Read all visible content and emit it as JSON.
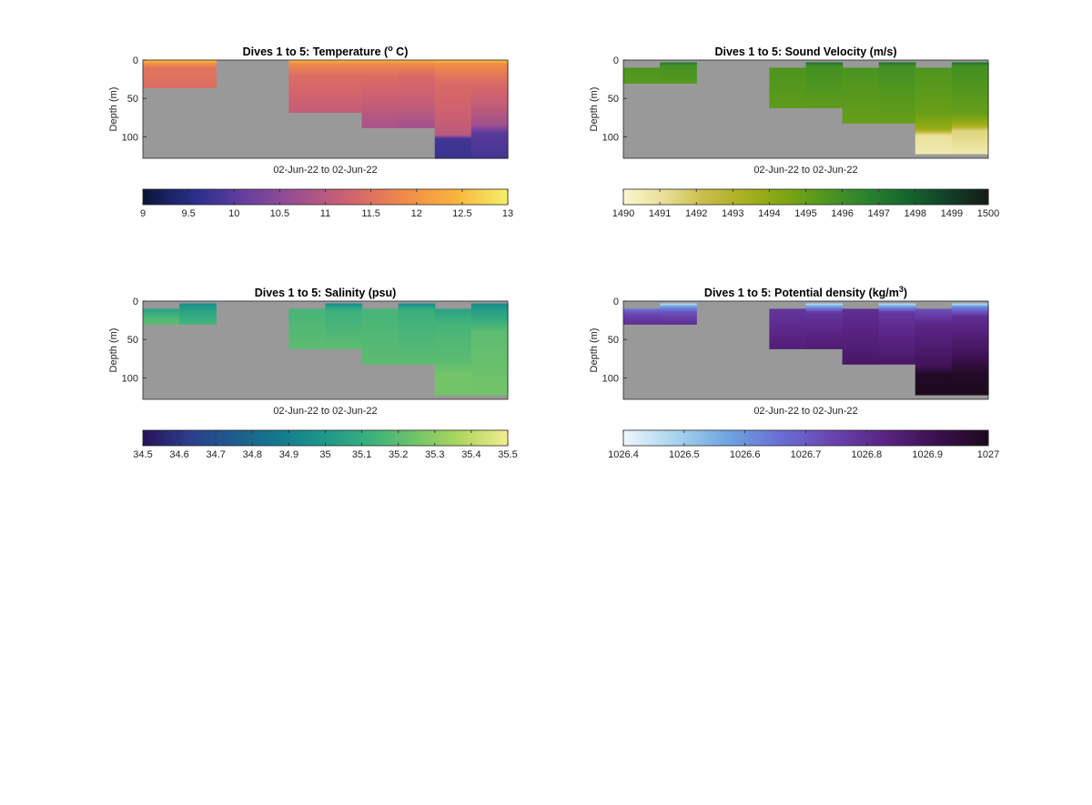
{
  "figure": {
    "background": "#ffffff",
    "no_data_color": "#999999"
  },
  "chart_data": [
    {
      "type": "heatmap",
      "id": "temperature",
      "title": "Dives 1 to 5: Temperature (",
      "title_sup": "o",
      "title_suffix": " C)",
      "ylabel": "Depth (m)",
      "xlabel": "02-Jun-22 to 02-Jun-22",
      "ylim": [
        0,
        128
      ],
      "yticks": [
        0,
        50,
        100
      ],
      "clim": [
        9,
        13
      ],
      "cticks": [
        9,
        9.5,
        10,
        10.5,
        11,
        11.5,
        12,
        12.5,
        13
      ],
      "colormap": [
        "#0a1638",
        "#2a2f8c",
        "#6a3fa0",
        "#a0508f",
        "#d2636d",
        "#f08a48",
        "#f9b43c",
        "#f5f06a"
      ],
      "columns": [
        {
          "depth": [
            0,
            36
          ],
          "top_gap": 0,
          "profile": [
            [
              0,
              12.6
            ],
            [
              4,
              12.0
            ],
            [
              10,
              11.55
            ],
            [
              36,
              11.45
            ]
          ]
        },
        {
          "depth": [
            0,
            36
          ],
          "top_gap": 0,
          "profile": [
            [
              0,
              12.6
            ],
            [
              4,
              12.0
            ],
            [
              10,
              11.55
            ],
            [
              36,
              11.45
            ]
          ]
        },
        {
          "depth": [
            0,
            0
          ],
          "top_gap": 0,
          "profile": []
        },
        {
          "depth": [
            0,
            0
          ],
          "top_gap": 0,
          "profile": []
        },
        {
          "depth": [
            0,
            68
          ],
          "top_gap": 0,
          "profile": [
            [
              0,
              12.6
            ],
            [
              4,
              11.9
            ],
            [
              20,
              11.45
            ],
            [
              50,
              11.25
            ],
            [
              68,
              11.1
            ]
          ]
        },
        {
          "depth": [
            0,
            68
          ],
          "top_gap": 0,
          "profile": [
            [
              0,
              12.6
            ],
            [
              4,
              11.9
            ],
            [
              20,
              11.45
            ],
            [
              50,
              11.25
            ],
            [
              68,
              11.1
            ]
          ]
        },
        {
          "depth": [
            0,
            88
          ],
          "top_gap": 0,
          "profile": [
            [
              0,
              12.6
            ],
            [
              4,
              11.9
            ],
            [
              20,
              11.45
            ],
            [
              60,
              11.1
            ],
            [
              88,
              10.8
            ]
          ]
        },
        {
          "depth": [
            0,
            88
          ],
          "top_gap": 0,
          "profile": [
            [
              0,
              12.6
            ],
            [
              4,
              11.9
            ],
            [
              20,
              11.4
            ],
            [
              60,
              11.1
            ],
            [
              88,
              10.75
            ]
          ]
        },
        {
          "depth": [
            0,
            128
          ],
          "top_gap": 0,
          "profile": [
            [
              0,
              12.6
            ],
            [
              5,
              11.9
            ],
            [
              30,
              11.4
            ],
            [
              75,
              11.2
            ],
            [
              98,
              11.0
            ],
            [
              102,
              9.8
            ],
            [
              128,
              9.7
            ]
          ]
        },
        {
          "depth": [
            0,
            128
          ],
          "top_gap": 0,
          "profile": [
            [
              0,
              12.6
            ],
            [
              5,
              11.9
            ],
            [
              30,
              11.4
            ],
            [
              60,
              11.1
            ],
            [
              85,
              10.7
            ],
            [
              95,
              10.0
            ],
            [
              128,
              9.8
            ]
          ]
        }
      ]
    },
    {
      "type": "heatmap",
      "id": "sound_velocity",
      "title": "Dives 1 to 5: Sound Velocity (m/s)",
      "ylabel": "Depth (m)",
      "xlabel": "02-Jun-22 to 02-Jun-22",
      "ylim": [
        0,
        128
      ],
      "yticks": [
        0,
        50,
        100
      ],
      "clim": [
        1490,
        1500
      ],
      "cticks": [
        1490,
        1491,
        1492,
        1493,
        1494,
        1495,
        1496,
        1497,
        1498,
        1499,
        1500
      ],
      "colormap": [
        "#fbf7d0",
        "#e8df96",
        "#c7bd4a",
        "#a8b01e",
        "#7ea512",
        "#4f961f",
        "#2b8230",
        "#14672d",
        "#13402a",
        "#141c16"
      ],
      "columns": [
        {
          "depth": [
            10,
            30
          ],
          "top_gap": 10,
          "profile": [
            [
              10,
              1495.6
            ],
            [
              30,
              1495.4
            ]
          ]
        },
        {
          "depth": [
            3,
            30
          ],
          "top_gap": 3,
          "profile": [
            [
              3,
              1497.0
            ],
            [
              8,
              1495.8
            ],
            [
              30,
              1495.4
            ]
          ]
        },
        {
          "depth": [
            0,
            0
          ],
          "top_gap": 0,
          "profile": []
        },
        {
          "depth": [
            0,
            0
          ],
          "top_gap": 0,
          "profile": []
        },
        {
          "depth": [
            10,
            62
          ],
          "top_gap": 10,
          "profile": [
            [
              10,
              1495.6
            ],
            [
              62,
              1495.2
            ]
          ]
        },
        {
          "depth": [
            3,
            62
          ],
          "top_gap": 3,
          "profile": [
            [
              3,
              1497.4
            ],
            [
              8,
              1495.9
            ],
            [
              62,
              1495.2
            ]
          ]
        },
        {
          "depth": [
            10,
            82
          ],
          "top_gap": 10,
          "profile": [
            [
              10,
              1495.7
            ],
            [
              82,
              1495.0
            ]
          ]
        },
        {
          "depth": [
            3,
            82
          ],
          "top_gap": 3,
          "profile": [
            [
              3,
              1497.4
            ],
            [
              8,
              1495.9
            ],
            [
              82,
              1495.0
            ]
          ]
        },
        {
          "depth": [
            10,
            122
          ],
          "top_gap": 10,
          "profile": [
            [
              10,
              1495.6
            ],
            [
              70,
              1494.9
            ],
            [
              90,
              1493.8
            ],
            [
              98,
              1491.0
            ],
            [
              122,
              1490.6
            ]
          ]
        },
        {
          "depth": [
            3,
            122
          ],
          "top_gap": 3,
          "profile": [
            [
              3,
              1497.4
            ],
            [
              8,
              1495.9
            ],
            [
              70,
              1495.0
            ],
            [
              85,
              1493.5
            ],
            [
              92,
              1491.5
            ],
            [
              122,
              1490.7
            ]
          ]
        }
      ]
    },
    {
      "type": "heatmap",
      "id": "salinity",
      "title": "Dives 1 to 5: Salinity (psu)",
      "ylabel": "Depth (m)",
      "xlabel": "02-Jun-22 to 02-Jun-22",
      "ylim": [
        0,
        128
      ],
      "yticks": [
        0,
        50,
        100
      ],
      "clim": [
        34.5,
        35.5
      ],
      "cticks": [
        34.5,
        34.6,
        34.7,
        34.8,
        34.9,
        35,
        35.1,
        35.2,
        35.3,
        35.4,
        35.5
      ],
      "colormap": [
        "#27125a",
        "#2c3d8c",
        "#1e5c8d",
        "#147a8e",
        "#1f9889",
        "#3cb07d",
        "#73c468",
        "#b1d860",
        "#f3ec92"
      ],
      "columns": [
        {
          "depth": [
            10,
            30
          ],
          "top_gap": 10,
          "profile": [
            [
              10,
              35.05
            ],
            [
              20,
              35.15
            ],
            [
              30,
              35.2
            ]
          ]
        },
        {
          "depth": [
            3,
            30
          ],
          "top_gap": 3,
          "profile": [
            [
              3,
              34.95
            ],
            [
              12,
              35.05
            ],
            [
              30,
              35.15
            ]
          ]
        },
        {
          "depth": [
            0,
            0
          ],
          "top_gap": 0,
          "profile": []
        },
        {
          "depth": [
            0,
            0
          ],
          "top_gap": 0,
          "profile": []
        },
        {
          "depth": [
            10,
            62
          ],
          "top_gap": 10,
          "profile": [
            [
              10,
              35.15
            ],
            [
              62,
              35.2
            ]
          ]
        },
        {
          "depth": [
            3,
            62
          ],
          "top_gap": 3,
          "profile": [
            [
              3,
              34.95
            ],
            [
              12,
              35.12
            ],
            [
              62,
              35.2
            ]
          ]
        },
        {
          "depth": [
            10,
            82
          ],
          "top_gap": 10,
          "profile": [
            [
              10,
              35.15
            ],
            [
              82,
              35.2
            ]
          ]
        },
        {
          "depth": [
            3,
            82
          ],
          "top_gap": 3,
          "profile": [
            [
              3,
              34.95
            ],
            [
              12,
              35.12
            ],
            [
              82,
              35.2
            ]
          ]
        },
        {
          "depth": [
            10,
            122
          ],
          "top_gap": 10,
          "profile": [
            [
              10,
              35.05
            ],
            [
              30,
              35.15
            ],
            [
              80,
              35.2
            ],
            [
              95,
              35.25
            ],
            [
              122,
              35.25
            ]
          ]
        },
        {
          "depth": [
            3,
            122
          ],
          "top_gap": 3,
          "profile": [
            [
              3,
              34.95
            ],
            [
              15,
              35.05
            ],
            [
              40,
              35.2
            ],
            [
              122,
              35.25
            ]
          ]
        }
      ]
    },
    {
      "type": "heatmap",
      "id": "potential_density",
      "title": "Dives 1 to 5: Potential density (kg/m",
      "title_sup": "3",
      "title_suffix": ")",
      "ylabel": "Depth (m)",
      "xlabel": "02-Jun-22 to 02-Jun-22",
      "ylim": [
        0,
        128
      ],
      "yticks": [
        0,
        50,
        100
      ],
      "clim": [
        1026.4,
        1027
      ],
      "cticks": [
        1026.4,
        1026.5,
        1026.6,
        1026.7,
        1026.8,
        1026.9,
        1027
      ],
      "colormap": [
        "#eef6fb",
        "#a8d4ee",
        "#6fa4e0",
        "#6a6fd6",
        "#6a45b0",
        "#5a2484",
        "#3c1050",
        "#1c0a1c"
      ],
      "columns": [
        {
          "depth": [
            10,
            30
          ],
          "top_gap": 10,
          "profile": [
            [
              10,
              1026.65
            ],
            [
              18,
              1026.75
            ],
            [
              30,
              1026.8
            ]
          ]
        },
        {
          "depth": [
            3,
            30
          ],
          "top_gap": 3,
          "profile": [
            [
              3,
              1026.45
            ],
            [
              8,
              1026.6
            ],
            [
              15,
              1026.72
            ],
            [
              30,
              1026.8
            ]
          ]
        },
        {
          "depth": [
            0,
            0
          ],
          "top_gap": 0,
          "profile": []
        },
        {
          "depth": [
            0,
            0
          ],
          "top_gap": 0,
          "profile": []
        },
        {
          "depth": [
            10,
            62
          ],
          "top_gap": 10,
          "profile": [
            [
              10,
              1026.78
            ],
            [
              62,
              1026.85
            ]
          ]
        },
        {
          "depth": [
            3,
            62
          ],
          "top_gap": 3,
          "profile": [
            [
              3,
              1026.45
            ],
            [
              8,
              1026.6
            ],
            [
              15,
              1026.78
            ],
            [
              62,
              1026.86
            ]
          ]
        },
        {
          "depth": [
            10,
            82
          ],
          "top_gap": 10,
          "profile": [
            [
              10,
              1026.8
            ],
            [
              82,
              1026.88
            ]
          ]
        },
        {
          "depth": [
            3,
            82
          ],
          "top_gap": 3,
          "profile": [
            [
              3,
              1026.45
            ],
            [
              8,
              1026.6
            ],
            [
              15,
              1026.78
            ],
            [
              82,
              1026.88
            ]
          ]
        },
        {
          "depth": [
            10,
            122
          ],
          "top_gap": 10,
          "profile": [
            [
              10,
              1026.72
            ],
            [
              30,
              1026.82
            ],
            [
              85,
              1026.9
            ],
            [
              95,
              1026.98
            ],
            [
              122,
              1027.0
            ]
          ]
        },
        {
          "depth": [
            3,
            122
          ],
          "top_gap": 3,
          "profile": [
            [
              3,
              1026.45
            ],
            [
              8,
              1026.62
            ],
            [
              20,
              1026.8
            ],
            [
              70,
              1026.9
            ],
            [
              95,
              1026.98
            ],
            [
              122,
              1027.0
            ]
          ]
        }
      ]
    }
  ]
}
